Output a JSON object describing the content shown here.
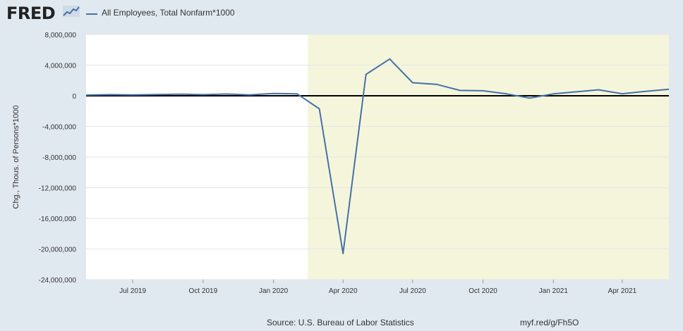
{
  "header": {
    "logo_text": "FRED",
    "logo_icon": "fred-graph-icon",
    "legend_label": "All Employees, Total Nonfarm*1000"
  },
  "colors": {
    "series": "#4572a7",
    "recession_band": "#f5f5dc",
    "background": "#e1e9f0",
    "plot": "#ffffff",
    "zero_line": "#000000"
  },
  "footer": {
    "source": "Source: U.S. Bureau of Labor Statistics",
    "link": "myf.red/g/Fh5O"
  },
  "chart_data": {
    "type": "line",
    "title": "",
    "xlabel": "",
    "ylabel": "Chg., Thous. of Persons*1000",
    "ylim": [
      -24000000,
      8000000
    ],
    "y_ticks": [
      8000000,
      4000000,
      0,
      -4000000,
      -8000000,
      -12000000,
      -16000000,
      -20000000,
      -24000000
    ],
    "y_tick_labels": [
      "8,000,000",
      "4,000,000",
      "0",
      "-4,000,000",
      "-8,000,000",
      "-12,000,000",
      "-16,000,000",
      "-20,000,000",
      "-24,000,000"
    ],
    "x_range": [
      "2019-05-01",
      "2021-06-01"
    ],
    "x_ticks": [
      {
        "date": "2019-07-01",
        "label": "Jul 2019"
      },
      {
        "date": "2019-10-01",
        "label": "Oct 2019"
      },
      {
        "date": "2020-01-01",
        "label": "Jan 2020"
      },
      {
        "date": "2020-04-01",
        "label": "Apr 2020"
      },
      {
        "date": "2020-07-01",
        "label": "Jul 2020"
      },
      {
        "date": "2020-10-01",
        "label": "Oct 2020"
      },
      {
        "date": "2021-01-01",
        "label": "Jan 2021"
      },
      {
        "date": "2021-04-01",
        "label": "Apr 2021"
      }
    ],
    "recession_shading": {
      "start": "2020-02-15",
      "end": "2021-06-01"
    },
    "grid": true,
    "legend_position": "top-left",
    "series": [
      {
        "name": "All Employees, Total Nonfarm*1000",
        "x": [
          "2019-05-01",
          "2019-06-01",
          "2019-07-01",
          "2019-08-01",
          "2019-09-01",
          "2019-10-01",
          "2019-11-01",
          "2019-12-01",
          "2020-01-01",
          "2020-02-01",
          "2020-03-01",
          "2020-04-01",
          "2020-05-01",
          "2020-06-01",
          "2020-07-01",
          "2020-08-01",
          "2020-09-01",
          "2020-10-01",
          "2020-11-01",
          "2020-12-01",
          "2021-01-01",
          "2021-02-01",
          "2021-03-01",
          "2021-04-01",
          "2021-05-01",
          "2021-06-01"
        ],
        "values": [
          90000,
          150000,
          120000,
          170000,
          200000,
          150000,
          230000,
          120000,
          300000,
          250000,
          -1700000,
          -20600000,
          2800000,
          4800000,
          1700000,
          1500000,
          700000,
          650000,
          250000,
          -300000,
          250000,
          530000,
          780000,
          270000,
          580000,
          850000
        ]
      }
    ]
  }
}
